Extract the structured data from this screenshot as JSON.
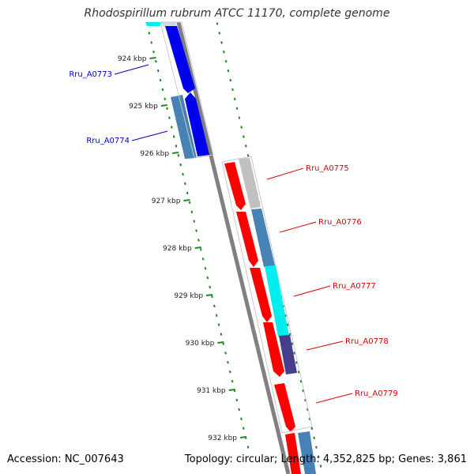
{
  "title": "Rhodospirillum rubrum ATCC 11170, complete genome",
  "footer": {
    "accession": "Accession: NC_007643",
    "summary": "Topology: circular; Length: 4,352,825 bp; Genes: 3,861"
  },
  "ticks": [
    "924 kbp",
    "925 kbp",
    "926 kbp",
    "927 kbp",
    "928 kbp",
    "929 kbp",
    "930 kbp",
    "931 kbp",
    "932 kbp"
  ],
  "colors": {
    "reverse_label": "#0000cc",
    "forward_label": "#dd0000",
    "ruler": "#228822",
    "backbone": "#808080"
  },
  "genes": [
    {
      "name": "Rru_A0773",
      "strand": "reverse",
      "color": "#0000ee"
    },
    {
      "name": "Rru_A0774",
      "strand": "reverse",
      "color": "#4682b4"
    },
    {
      "name": "Rru_A0775",
      "strand": "forward",
      "color": "#c0c0c0"
    },
    {
      "name": "Rru_A0776",
      "strand": "forward",
      "color": "#4682b4"
    },
    {
      "name": "Rru_A0777",
      "strand": "forward",
      "color": "#00eeee"
    },
    {
      "name": "Rru_A0778",
      "strand": "forward",
      "color": "#483d8b"
    },
    {
      "name": "Rru_A0779",
      "strand": "forward",
      "color": "#ff0000"
    }
  ]
}
